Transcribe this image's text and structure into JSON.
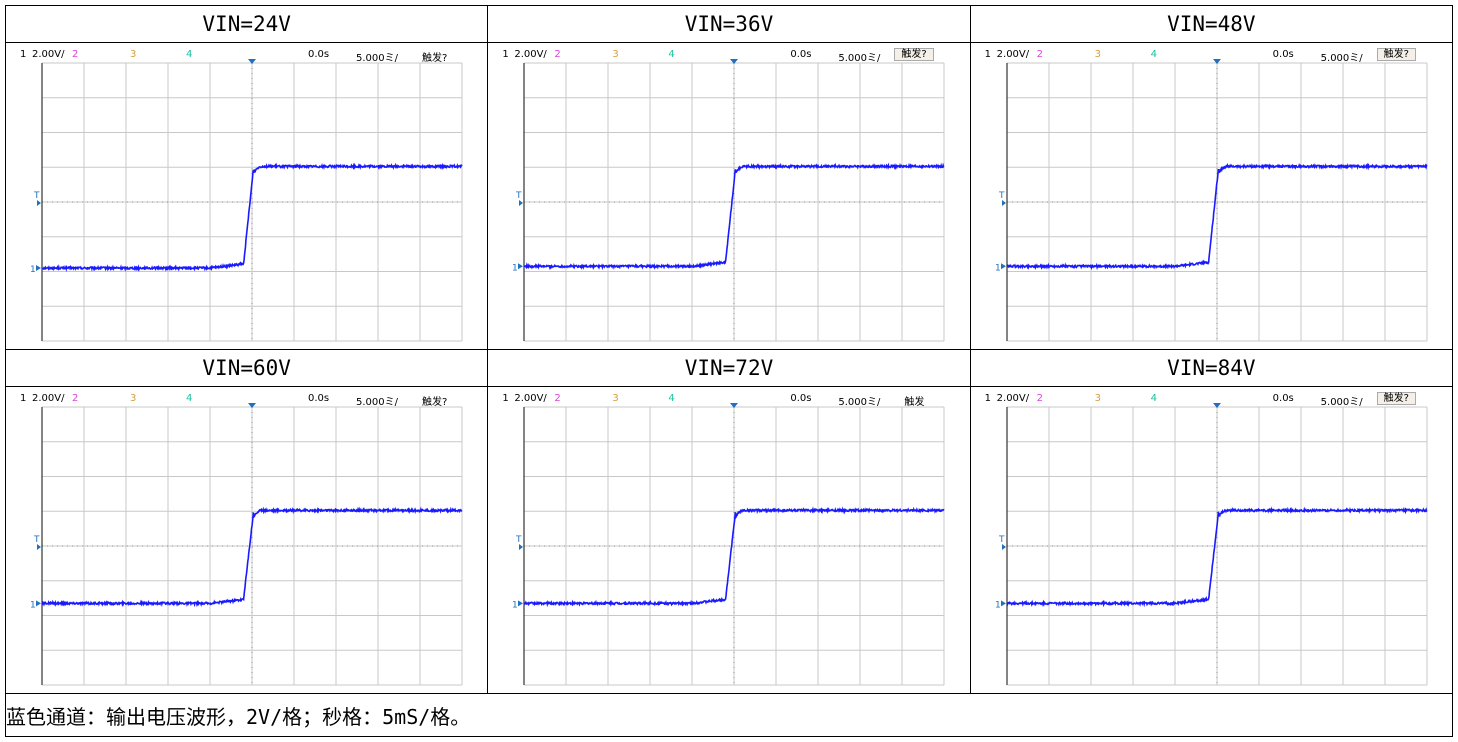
{
  "caption": "蓝色通道：输出电压波形，2V/格；秒格：5mS/格。",
  "colors": {
    "trace": "#1a1aff",
    "ch2": "#e040e0",
    "ch3": "#d4a040",
    "ch4": "#20c0a0",
    "grid": "#c8c8c8",
    "marker": "#2070c0"
  },
  "scope_labels": {
    "ch1": "1",
    "ch1_scale": "2.00V/",
    "ch2": "2",
    "ch3": "3",
    "ch4": "4",
    "delay": "0.0s",
    "timebase": "5.000ミ/",
    "trigger_marker": "T",
    "ground_marker": "1"
  },
  "panels": [
    {
      "label": "VIN=24V",
      "trigger_label": "触发?",
      "trigger_boxed": false
    },
    {
      "label": "VIN=36V",
      "trigger_label": "触发?",
      "trigger_boxed": true
    },
    {
      "label": "VIN=48V",
      "trigger_label": "触发?",
      "trigger_boxed": true
    },
    {
      "label": "VIN=60V",
      "trigger_label": "触发?",
      "trigger_boxed": false
    },
    {
      "label": "VIN=72V",
      "trigger_label": "触发",
      "trigger_boxed": false
    },
    {
      "label": "VIN=84V",
      "trigger_label": "触发?",
      "trigger_boxed": true
    }
  ],
  "chart_data": [
    {
      "type": "line",
      "title": "VIN=24V",
      "xlim": [
        -25,
        25
      ],
      "ylim": [
        -4,
        12
      ],
      "divisions_x": 10,
      "divisions_y": 8,
      "v_low": 0.2,
      "v_high": 6.05,
      "rise_t": -0.4
    },
    {
      "type": "line",
      "title": "VIN=36V",
      "xlim": [
        -25,
        25
      ],
      "ylim": [
        -4,
        12
      ],
      "divisions_x": 10,
      "divisions_y": 8,
      "v_low": 0.3,
      "v_high": 6.05,
      "rise_t": -0.4
    },
    {
      "type": "line",
      "title": "VIN=48V",
      "xlim": [
        -25,
        25
      ],
      "ylim": [
        -4,
        12
      ],
      "divisions_x": 10,
      "divisions_y": 8,
      "v_low": 0.3,
      "v_high": 6.05,
      "rise_t": -0.4
    },
    {
      "type": "line",
      "title": "VIN=60V",
      "xlim": [
        -25,
        25
      ],
      "ylim": [
        -4,
        12
      ],
      "divisions_x": 10,
      "divisions_y": 8,
      "v_low": 0.7,
      "v_high": 6.05,
      "rise_t": -0.4
    },
    {
      "type": "line",
      "title": "VIN=72V",
      "xlim": [
        -25,
        25
      ],
      "ylim": [
        -4,
        12
      ],
      "divisions_x": 10,
      "divisions_y": 8,
      "v_low": 0.7,
      "v_high": 6.05,
      "rise_t": -0.4
    },
    {
      "type": "line",
      "title": "VIN=84V",
      "xlim": [
        -25,
        25
      ],
      "ylim": [
        -4,
        12
      ],
      "divisions_x": 10,
      "divisions_y": 8,
      "v_low": 0.7,
      "v_high": 6.05,
      "rise_t": -0.4
    }
  ]
}
